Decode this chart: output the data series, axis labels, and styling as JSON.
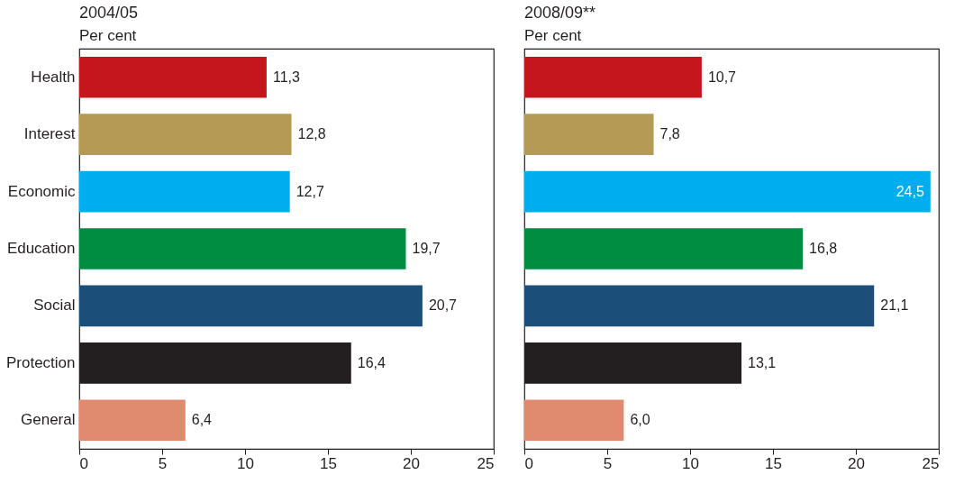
{
  "chart_data": [
    {
      "type": "bar",
      "orientation": "horizontal",
      "title": "2004/05",
      "subtitle": "Per cent",
      "categories": [
        "Health",
        "Interest",
        "Economic",
        "Education",
        "Social",
        "Protection",
        "General"
      ],
      "values": [
        11.3,
        12.8,
        12.7,
        19.7,
        20.7,
        16.4,
        6.4
      ],
      "colors": [
        "#c4161c",
        "#b59a55",
        "#00aeef",
        "#008d42",
        "#1b4f7a",
        "#231f20",
        "#e08a70"
      ],
      "value_labels": [
        "11,3",
        "12,8",
        "12,7",
        "19,7",
        "20,7",
        "16,4",
        "6,4"
      ],
      "xlim": [
        0,
        25
      ],
      "xticks": [
        0,
        5,
        10,
        15,
        20,
        25
      ],
      "grid": false,
      "legend": false
    },
    {
      "type": "bar",
      "orientation": "horizontal",
      "title": "2008/09**",
      "subtitle": "Per cent",
      "categories": [
        null,
        null,
        null,
        null,
        null,
        null,
        null
      ],
      "values": [
        10.7,
        7.8,
        24.5,
        16.8,
        21.1,
        13.1,
        6.0
      ],
      "colors": [
        "#c4161c",
        "#b59a55",
        "#00aeef",
        "#008d42",
        "#1b4f7a",
        "#231f20",
        "#e08a70"
      ],
      "value_labels": [
        "10,7",
        "7,8",
        "24,5",
        "16,8",
        "21,1",
        "13,1",
        "6,0"
      ],
      "xlim": [
        0,
        25
      ],
      "xticks": [
        0,
        5,
        10,
        15,
        20,
        25
      ],
      "grid": false,
      "legend": false,
      "tick_labels": "x"
    }
  ]
}
